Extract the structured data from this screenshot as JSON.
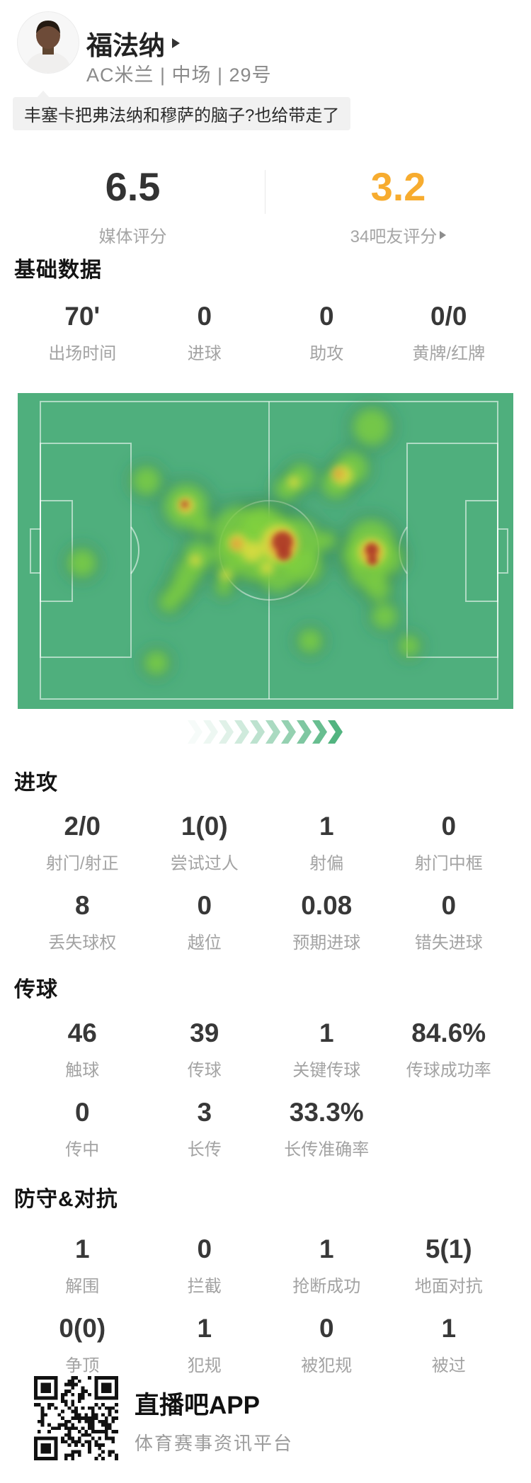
{
  "player": {
    "name": "福法纳",
    "subtitle": "AC米兰 | 中场 | 29号"
  },
  "quote": {
    "text": "丰塞卡把弗法纳和穆萨的脑子?也给带走了"
  },
  "ratings": {
    "media": {
      "value": "6.5",
      "label": "媒体评分"
    },
    "fans": {
      "value": "3.2",
      "label": "34吧友评分",
      "color": "#F7AC2F"
    }
  },
  "sections": {
    "basic": {
      "title": "基础数据",
      "stats": [
        {
          "value": "70'",
          "label": "出场时间"
        },
        {
          "value": "0",
          "label": "进球"
        },
        {
          "value": "0",
          "label": "助攻"
        },
        {
          "value": "0/0",
          "label": "黄牌/红牌"
        }
      ]
    },
    "attack": {
      "title": "进攻",
      "stats": [
        {
          "value": "2/0",
          "label": "射门/射正"
        },
        {
          "value": "1(0)",
          "label": "尝试过人"
        },
        {
          "value": "1",
          "label": "射偏"
        },
        {
          "value": "0",
          "label": "射门中框"
        },
        {
          "value": "8",
          "label": "丢失球权"
        },
        {
          "value": "0",
          "label": "越位"
        },
        {
          "value": "0.08",
          "label": "预期进球"
        },
        {
          "value": "0",
          "label": "错失进球"
        }
      ]
    },
    "passing": {
      "title": "传球",
      "stats": [
        {
          "value": "46",
          "label": "触球"
        },
        {
          "value": "39",
          "label": "传球"
        },
        {
          "value": "1",
          "label": "关键传球"
        },
        {
          "value": "84.6%",
          "label": "传球成功率"
        },
        {
          "value": "0",
          "label": "传中"
        },
        {
          "value": "3",
          "label": "长传"
        },
        {
          "value": "33.3%",
          "label": "长传准确率"
        }
      ]
    },
    "defense": {
      "title": "防守&对抗",
      "stats": [
        {
          "value": "1",
          "label": "解围"
        },
        {
          "value": "0",
          "label": "拦截"
        },
        {
          "value": "1",
          "label": "抢断成功"
        },
        {
          "value": "5(1)",
          "label": "地面对抗"
        },
        {
          "value": "0(0)",
          "label": "争顶"
        },
        {
          "value": "1",
          "label": "犯规"
        },
        {
          "value": "0",
          "label": "被犯规"
        },
        {
          "value": "1",
          "label": "被过"
        }
      ]
    }
  },
  "heatmap": {
    "pitch_color": "#4FAF7D",
    "line_color": "rgba(255,255,255,0.55)",
    "layers": [
      {
        "name": "green",
        "color": "#7FD13E",
        "blur": "b8",
        "opacity": 0.8,
        "spots": [
          [
            500,
            48,
            26
          ],
          [
            472,
            106,
            23
          ],
          [
            450,
            128,
            21
          ],
          [
            400,
            119,
            19
          ],
          [
            380,
            135,
            17
          ],
          [
            182,
            124,
            20
          ],
          [
            238,
            160,
            31
          ],
          [
            260,
            186,
            14
          ],
          [
            91,
            240,
            20
          ],
          [
            312,
            196,
            36
          ],
          [
            352,
            204,
            40
          ],
          [
            392,
            214,
            38
          ],
          [
            332,
            238,
            27
          ],
          [
            302,
            224,
            25
          ],
          [
            368,
            250,
            31
          ],
          [
            344,
            182,
            24
          ],
          [
            406,
            246,
            24
          ],
          [
            256,
            230,
            21
          ],
          [
            241,
            254,
            19
          ],
          [
            229,
            277,
            17
          ],
          [
            214,
            295,
            15
          ],
          [
            295,
            254,
            14
          ],
          [
            291,
            275,
            12
          ],
          [
            437,
            208,
            13
          ],
          [
            499,
            213,
            34
          ],
          [
            494,
            249,
            27
          ],
          [
            521,
            234,
            23
          ],
          [
            479,
            229,
            21
          ],
          [
            509,
            276,
            18
          ],
          [
            518,
            315,
            18
          ],
          [
            413,
            350,
            17
          ],
          [
            553,
            357,
            15
          ],
          [
            196,
            381,
            17
          ]
        ]
      },
      {
        "name": "yellow",
        "color": "#E0DC3E",
        "blur": "b6",
        "opacity": 0.85,
        "spots": [
          [
            459,
            116,
            14
          ],
          [
            238,
            159,
            12
          ],
          [
            369,
            212,
            26
          ],
          [
            331,
            224,
            15
          ],
          [
            311,
            211,
            12
          ],
          [
            500,
            224,
            19
          ],
          [
            251,
            236,
            8
          ],
          [
            294,
            257,
            7
          ],
          [
            390,
            126,
            8
          ],
          [
            352,
            247,
            9
          ]
        ]
      },
      {
        "name": "orange",
        "color": "#E8953A",
        "blur": "b6",
        "opacity": 0.9,
        "spots": [
          [
            453,
            114,
            7
          ],
          [
            236,
            158,
            7
          ],
          [
            309,
            213,
            8
          ],
          [
            374,
            214,
            18
          ],
          [
            500,
            226,
            12
          ]
        ]
      },
      {
        "name": "red",
        "color": "#AE3B27",
        "blur": "b4",
        "opacity": 0.95,
        "spots": [
          [
            374,
            210,
            14
          ],
          [
            376,
            226,
            10
          ],
          [
            500,
            221,
            9
          ],
          [
            501,
            236,
            7
          ],
          [
            236,
            157,
            4
          ]
        ]
      }
    ]
  },
  "chevrons": {
    "count": 10,
    "color_r": 82,
    "color_g": 180,
    "color_b": 128
  },
  "footer": {
    "app_name": "直播吧APP",
    "tagline": "体育赛事资讯平台"
  }
}
